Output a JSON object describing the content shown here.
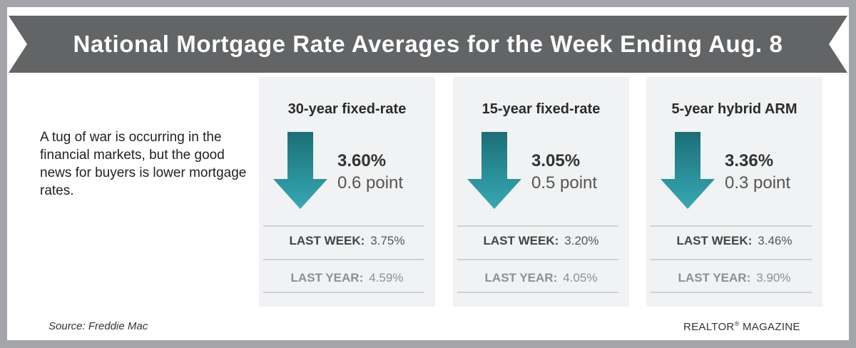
{
  "banner": {
    "title": "National Mortgage Rate Averages for the Week Ending Aug. 8"
  },
  "intro": {
    "text": "A tug of war is occurring in the financial markets, but the good news for buyers is lower mortgage rates."
  },
  "colors": {
    "banner": "#626466",
    "arrow_top": "#1b6e77",
    "arrow_bottom": "#36a9b4",
    "card_bg": "#f1f2f3"
  },
  "chart_data": {
    "type": "table",
    "direction": "down",
    "labels": {
      "last_week": "LAST WEEK:",
      "last_year": "LAST YEAR:"
    },
    "products": [
      {
        "name": "30-year fixed-rate",
        "rate": "3.60%",
        "change": "0.6 point",
        "last_week": "3.75%",
        "last_year": "4.59%"
      },
      {
        "name": "15-year fixed-rate",
        "rate": "3.05%",
        "change": "0.5 point",
        "last_week": "3.20%",
        "last_year": "4.05%"
      },
      {
        "name": "5-year hybrid ARM",
        "rate": "3.36%",
        "change": "0.3 point",
        "last_week": "3.46%",
        "last_year": "3.90%"
      }
    ]
  },
  "footer": {
    "source": "Source: Freddie Mac",
    "brand_name": "REALTOR",
    "brand_mark": "®",
    "brand_suffix": " MAGAZINE"
  }
}
